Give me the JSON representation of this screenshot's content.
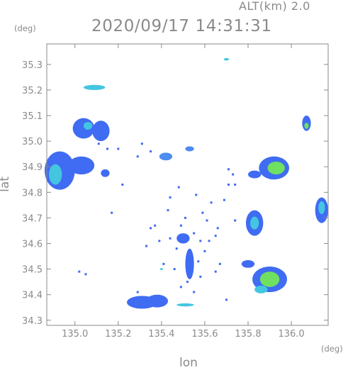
{
  "header": {
    "altitude_label": "ALT(km) 2.0",
    "datetime": "2020/09/17 14:31:31"
  },
  "colors": {
    "axis": "#8a8a8a",
    "blue": "#3f6cf2",
    "blue_light": "#4d8cf0",
    "cyan": "#44c6e0",
    "green": "#6fe060",
    "yellow_green": "#a8e860"
  },
  "chart_data": {
    "type": "heatmap",
    "title": "2020/09/17 14:31:31",
    "subtitle": "ALT(km) 2.0",
    "xlabel": "lon",
    "ylabel": "lat",
    "x_unit": "(deg)",
    "y_unit": "(deg)",
    "xlim": [
      134.87,
      136.17
    ],
    "ylim": [
      34.28,
      35.38
    ],
    "xticks": [
      135.0,
      135.2,
      135.4,
      135.6,
      135.8,
      136.0
    ],
    "xtick_labels": [
      "135.0",
      "135.2",
      "135.4",
      "135.6",
      "135.8",
      "136.0"
    ],
    "yticks": [
      34.3,
      34.4,
      34.5,
      34.6,
      34.7,
      34.8,
      34.9,
      35.0,
      35.1,
      35.2,
      35.3
    ],
    "ytick_labels": [
      "34.3",
      "34.4",
      "34.5",
      "34.6",
      "34.7",
      "34.8",
      "34.9",
      "35.0",
      "35.1",
      "35.2",
      "35.3"
    ],
    "grid": false,
    "echo_cells": [
      {
        "lon": 134.93,
        "lat": 34.885,
        "rlon": 0.07,
        "rlat": 0.075,
        "level": "blue"
      },
      {
        "lon": 134.91,
        "lat": 34.87,
        "rlon": 0.03,
        "rlat": 0.04,
        "level": "cyan"
      },
      {
        "lon": 135.03,
        "lat": 34.905,
        "rlon": 0.06,
        "rlat": 0.035,
        "level": "blue"
      },
      {
        "lon": 135.04,
        "lat": 35.05,
        "rlon": 0.05,
        "rlat": 0.04,
        "level": "blue"
      },
      {
        "lon": 135.12,
        "lat": 35.04,
        "rlon": 0.04,
        "rlat": 0.04,
        "level": "blue"
      },
      {
        "lon": 135.06,
        "lat": 35.06,
        "rlon": 0.02,
        "rlat": 0.015,
        "level": "cyan"
      },
      {
        "lon": 135.14,
        "lat": 34.875,
        "rlon": 0.02,
        "rlat": 0.015,
        "level": "blue"
      },
      {
        "lon": 135.09,
        "lat": 35.21,
        "rlon": 0.05,
        "rlat": 0.01,
        "level": "cyan"
      },
      {
        "lon": 135.42,
        "lat": 34.94,
        "rlon": 0.03,
        "rlat": 0.015,
        "level": "blue_light"
      },
      {
        "lon": 135.53,
        "lat": 34.97,
        "rlon": 0.02,
        "rlat": 0.01,
        "level": "blue_light"
      },
      {
        "lon": 135.7,
        "lat": 35.32,
        "rlon": 0.012,
        "rlat": 0.005,
        "level": "cyan"
      },
      {
        "lon": 135.31,
        "lat": 34.37,
        "rlon": 0.07,
        "rlat": 0.025,
        "level": "blue"
      },
      {
        "lon": 135.38,
        "lat": 34.375,
        "rlon": 0.05,
        "rlat": 0.025,
        "level": "blue"
      },
      {
        "lon": 135.51,
        "lat": 34.36,
        "rlon": 0.04,
        "rlat": 0.006,
        "level": "cyan"
      },
      {
        "lon": 135.53,
        "lat": 34.52,
        "rlon": 0.02,
        "rlat": 0.06,
        "level": "blue"
      },
      {
        "lon": 135.5,
        "lat": 34.62,
        "rlon": 0.03,
        "rlat": 0.02,
        "level": "blue"
      },
      {
        "lon": 135.9,
        "lat": 34.46,
        "rlon": 0.08,
        "rlat": 0.05,
        "level": "blue"
      },
      {
        "lon": 135.9,
        "lat": 34.46,
        "rlon": 0.045,
        "rlat": 0.03,
        "level": "green"
      },
      {
        "lon": 135.86,
        "lat": 34.42,
        "rlon": 0.03,
        "rlat": 0.015,
        "level": "cyan"
      },
      {
        "lon": 135.8,
        "lat": 34.52,
        "rlon": 0.03,
        "rlat": 0.015,
        "level": "blue"
      },
      {
        "lon": 135.83,
        "lat": 34.68,
        "rlon": 0.04,
        "rlat": 0.05,
        "level": "blue"
      },
      {
        "lon": 135.83,
        "lat": 34.68,
        "rlon": 0.02,
        "rlat": 0.025,
        "level": "cyan"
      },
      {
        "lon": 135.92,
        "lat": 34.895,
        "rlon": 0.07,
        "rlat": 0.045,
        "level": "blue"
      },
      {
        "lon": 135.93,
        "lat": 34.895,
        "rlon": 0.04,
        "rlat": 0.025,
        "level": "green"
      },
      {
        "lon": 135.83,
        "lat": 34.87,
        "rlon": 0.03,
        "rlat": 0.015,
        "level": "blue"
      },
      {
        "lon": 136.07,
        "lat": 35.07,
        "rlon": 0.02,
        "rlat": 0.03,
        "level": "blue"
      },
      {
        "lon": 136.07,
        "lat": 35.06,
        "rlon": 0.01,
        "rlat": 0.012,
        "level": "green"
      },
      {
        "lon": 136.14,
        "lat": 34.73,
        "rlon": 0.03,
        "rlat": 0.05,
        "level": "blue"
      },
      {
        "lon": 136.14,
        "lat": 34.74,
        "rlon": 0.015,
        "rlat": 0.025,
        "level": "cyan"
      },
      {
        "lon": 135.4,
        "lat": 34.5,
        "rlon": 0.006,
        "rlat": 0.004,
        "level": "cyan"
      }
    ],
    "echo_specks": [
      [
        135.2,
        34.97
      ],
      [
        135.29,
        34.94
      ],
      [
        135.35,
        34.96
      ],
      [
        135.31,
        34.99
      ],
      [
        135.56,
        34.79
      ],
      [
        135.48,
        34.82
      ],
      [
        135.35,
        34.66
      ],
      [
        135.43,
        34.73
      ],
      [
        135.44,
        34.62
      ],
      [
        135.39,
        34.61
      ],
      [
        135.33,
        34.59
      ],
      [
        135.47,
        34.58
      ],
      [
        135.49,
        34.67
      ],
      [
        135.51,
        34.7
      ],
      [
        135.55,
        34.64
      ],
      [
        135.58,
        34.61
      ],
      [
        135.6,
        34.57
      ],
      [
        135.62,
        34.61
      ],
      [
        135.65,
        34.63
      ],
      [
        135.66,
        34.66
      ],
      [
        135.69,
        34.77
      ],
      [
        135.71,
        34.83
      ],
      [
        135.73,
        34.87
      ],
      [
        135.74,
        34.83
      ],
      [
        135.65,
        34.49
      ],
      [
        135.67,
        34.52
      ],
      [
        135.58,
        34.47
      ],
      [
        135.49,
        34.43
      ],
      [
        135.55,
        34.41
      ],
      [
        135.7,
        34.38
      ],
      [
        135.71,
        34.89
      ],
      [
        135.74,
        34.69
      ],
      [
        135.17,
        34.72
      ],
      [
        135.22,
        34.83
      ],
      [
        135.15,
        34.97
      ],
      [
        135.11,
        34.99
      ],
      [
        135.02,
        34.49
      ],
      [
        135.05,
        34.48
      ],
      [
        135.44,
        34.78
      ],
      [
        135.59,
        34.72
      ],
      [
        135.61,
        34.69
      ],
      [
        135.63,
        34.76
      ],
      [
        135.29,
        34.41
      ],
      [
        135.37,
        34.67
      ],
      [
        135.41,
        34.52
      ],
      [
        135.46,
        34.5
      ],
      [
        135.52,
        34.45
      ],
      [
        135.57,
        34.53
      ]
    ]
  }
}
